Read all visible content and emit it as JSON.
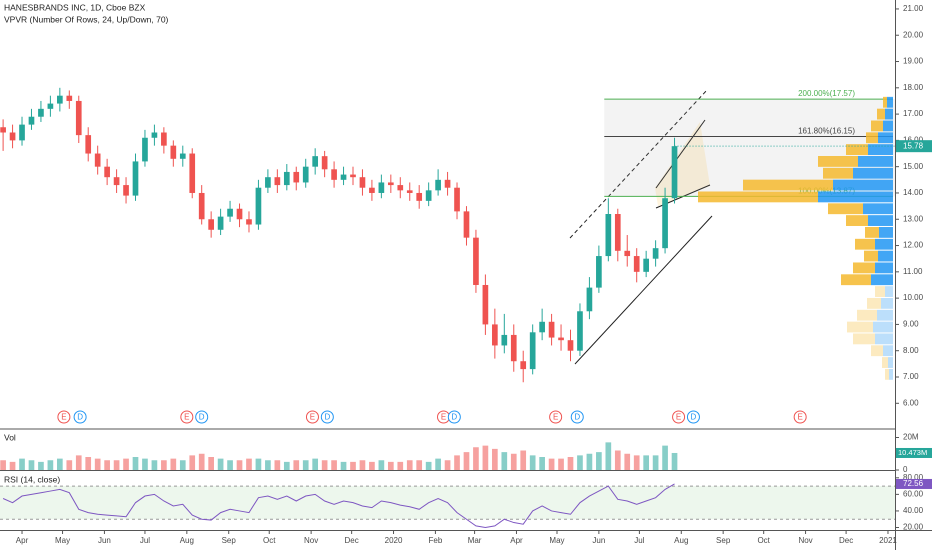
{
  "chart_data": {
    "type": "candlestick",
    "title": "HANESBRANDS INC, 1D, Cboe BZX",
    "subtitle": "VPVR (Number Of Rows, 24, Up/Down, 70)",
    "x": [
      -14,
      -7,
      0,
      7,
      14,
      21,
      28,
      35,
      42,
      49,
      56,
      63,
      70,
      77,
      84,
      91,
      98,
      105,
      112,
      119,
      126,
      133,
      140,
      147,
      154,
      161,
      168,
      175,
      182,
      189,
      196,
      203,
      210,
      217,
      224,
      231,
      238,
      245,
      252,
      259,
      266,
      273,
      280,
      287,
      294,
      301,
      308,
      315,
      322,
      329,
      336,
      343,
      350,
      357,
      364,
      371,
      378,
      385,
      392,
      399,
      406,
      413,
      420,
      427,
      434,
      441,
      448,
      455,
      462,
      469,
      476,
      483
    ],
    "open": [
      16.5,
      16.3,
      16.0,
      16.6,
      16.9,
      17.2,
      17.4,
      17.7,
      17.5,
      16.2,
      15.5,
      15.0,
      14.6,
      14.3,
      13.9,
      15.2,
      16.1,
      16.3,
      15.8,
      15.3,
      15.5,
      14.0,
      13.0,
      12.6,
      13.1,
      13.4,
      13.0,
      12.8,
      14.2,
      14.6,
      14.3,
      14.8,
      14.4,
      15.0,
      15.4,
      14.9,
      14.5,
      14.7,
      14.6,
      14.2,
      14.0,
      14.4,
      14.3,
      14.1,
      14.0,
      13.7,
      14.1,
      14.5,
      14.2,
      13.3,
      12.3,
      10.5,
      9.0,
      8.2,
      8.6,
      7.6,
      7.3,
      8.7,
      9.1,
      8.5,
      8.4,
      8.0,
      9.5,
      10.4,
      11.6,
      13.2,
      11.8,
      11.6,
      11.0,
      11.5,
      11.9,
      13.8
    ],
    "high": [
      16.8,
      16.6,
      16.9,
      17.2,
      17.5,
      17.7,
      18.0,
      17.9,
      17.7,
      16.5,
      15.8,
      15.3,
      14.9,
      14.6,
      15.5,
      16.4,
      16.6,
      16.5,
      16.0,
      15.8,
      15.7,
      14.3,
      13.3,
      13.4,
      13.7,
      13.6,
      13.3,
      14.5,
      14.9,
      14.9,
      15.1,
      15.0,
      15.3,
      15.7,
      15.6,
      15.2,
      15.0,
      15.0,
      14.9,
      14.5,
      14.7,
      14.7,
      14.6,
      14.4,
      14.3,
      14.4,
      14.9,
      14.8,
      14.4,
      13.5,
      12.6,
      10.9,
      9.6,
      9.4,
      9.0,
      8.0,
      9.0,
      9.6,
      9.4,
      9.0,
      8.8,
      9.8,
      10.8,
      12.0,
      13.8,
      13.4,
      12.4,
      11.9,
      11.8,
      12.2,
      14.2,
      16.1
    ],
    "low": [
      15.6,
      15.7,
      15.8,
      16.4,
      16.7,
      16.9,
      17.1,
      17.2,
      15.9,
      15.2,
      14.7,
      14.3,
      14.0,
      13.6,
      13.7,
      15.0,
      15.8,
      15.5,
      15.0,
      15.0,
      13.8,
      12.8,
      12.3,
      12.4,
      12.9,
      12.7,
      12.5,
      12.6,
      14.0,
      14.0,
      14.1,
      14.1,
      14.2,
      14.7,
      14.6,
      14.2,
      14.3,
      14.3,
      13.9,
      13.7,
      13.8,
      14.0,
      13.8,
      13.7,
      13.4,
      13.5,
      13.9,
      13.9,
      13.0,
      12.0,
      10.2,
      8.6,
      7.7,
      7.9,
      7.2,
      6.8,
      7.1,
      8.4,
      8.2,
      8.0,
      7.6,
      7.8,
      9.2,
      10.2,
      11.4,
      11.4,
      11.2,
      10.6,
      10.8,
      11.2,
      11.7,
      13.6
    ],
    "close": [
      16.3,
      16.0,
      16.6,
      16.9,
      17.2,
      17.4,
      17.7,
      17.5,
      16.2,
      15.5,
      15.0,
      14.6,
      14.3,
      13.9,
      15.2,
      16.1,
      16.3,
      15.8,
      15.3,
      15.5,
      14.0,
      13.0,
      12.6,
      13.1,
      13.4,
      13.0,
      12.8,
      14.2,
      14.6,
      14.3,
      14.8,
      14.4,
      15.0,
      15.4,
      14.9,
      14.5,
      14.7,
      14.6,
      14.2,
      14.0,
      14.4,
      14.3,
      14.1,
      14.0,
      13.7,
      14.1,
      14.5,
      14.2,
      13.3,
      12.3,
      10.5,
      9.0,
      8.2,
      8.6,
      7.6,
      7.3,
      8.7,
      9.1,
      8.5,
      8.4,
      8.0,
      9.5,
      10.4,
      11.6,
      13.2,
      11.8,
      11.6,
      11.0,
      11.5,
      11.9,
      13.8,
      15.78
    ],
    "up_color": "#26a69a",
    "down_color": "#ef5350",
    "xlim": [
      -16.3,
      646.2
    ],
    "xticks": [
      {
        "value": 0,
        "label": "Apr"
      },
      {
        "value": 30,
        "label": "May"
      },
      {
        "value": 61,
        "label": "Jun"
      },
      {
        "value": 91,
        "label": "Jul"
      },
      {
        "value": 122,
        "label": "Aug"
      },
      {
        "value": 153,
        "label": "Sep"
      },
      {
        "value": 183,
        "label": "Oct"
      },
      {
        "value": 214,
        "label": "Nov"
      },
      {
        "value": 244,
        "label": "Dec"
      },
      {
        "value": 275,
        "label": "2020"
      },
      {
        "value": 306,
        "label": "Feb"
      },
      {
        "value": 335,
        "label": "Mar"
      },
      {
        "value": 366,
        "label": "Apr"
      },
      {
        "value": 396,
        "label": "May"
      },
      {
        "value": 427,
        "label": "Jun"
      },
      {
        "value": 457,
        "label": "Jul"
      },
      {
        "value": 488,
        "label": "Aug"
      },
      {
        "value": 519,
        "label": "Sep"
      },
      {
        "value": 549,
        "label": "Oct"
      },
      {
        "value": 580,
        "label": "Nov"
      },
      {
        "value": 610,
        "label": "Dec"
      },
      {
        "value": 641,
        "label": "2021"
      }
    ],
    "ylim": [
      5.06,
      21.34
    ],
    "yticks": [
      {
        "value": 6,
        "label": "6.00"
      },
      {
        "value": 7,
        "label": "7.00"
      },
      {
        "value": 8,
        "label": "8.00"
      },
      {
        "value": 9,
        "label": "9.00"
      },
      {
        "value": 10,
        "label": "10.00"
      },
      {
        "value": 11,
        "label": "11.00"
      },
      {
        "value": 12,
        "label": "12.00"
      },
      {
        "value": 13,
        "label": "13.00"
      },
      {
        "value": 14,
        "label": "14.00"
      },
      {
        "value": 15,
        "label": "15.00"
      },
      {
        "value": 16,
        "label": "16.00"
      },
      {
        "value": 17,
        "label": "17.00"
      },
      {
        "value": 18,
        "label": "18.00"
      },
      {
        "value": 19,
        "label": "19.00"
      },
      {
        "value": 20,
        "label": "20.00"
      },
      {
        "value": 21,
        "label": "21.00"
      }
    ],
    "fib": {
      "x_start": 431,
      "levels": [
        {
          "value": 17.57,
          "label": "200.00%(17.57)",
          "color": "#4caf50"
        },
        {
          "value": 16.15,
          "label": "161.80%(16.15)",
          "color": "#444444"
        },
        {
          "value": 13.87,
          "label": "100.00%(13.87)",
          "color": "#4caf50"
        }
      ]
    },
    "events": [
      {
        "label": "E",
        "x": 31
      },
      {
        "label": "D",
        "x": 43
      },
      {
        "label": "E",
        "x": 122
      },
      {
        "label": "D",
        "x": 133
      },
      {
        "label": "E",
        "x": 215
      },
      {
        "label": "D",
        "x": 226
      },
      {
        "label": "E",
        "x": 312
      },
      {
        "label": "D",
        "x": 320
      },
      {
        "label": "E",
        "x": 395
      },
      {
        "label": "D",
        "x": 411
      },
      {
        "label": "E",
        "x": 486
      },
      {
        "label": "D",
        "x": 497
      },
      {
        "label": "E",
        "x": 576
      }
    ],
    "event_colors": {
      "E": "#ef5350",
      "D": "#2196f3"
    },
    "vpvr": {
      "prices": [
        7.1,
        7.55,
        8.0,
        8.45,
        8.9,
        9.35,
        9.8,
        10.25,
        10.7,
        11.15,
        11.6,
        12.05,
        12.5,
        12.95,
        13.4,
        13.85,
        14.3,
        14.75,
        15.2,
        15.65,
        16.1,
        16.55,
        17.0,
        17.45
      ],
      "up": [
        4,
        5,
        10,
        18,
        20,
        16,
        12,
        8,
        22,
        18,
        15,
        18,
        14,
        25,
        30,
        75,
        60,
        40,
        35,
        25,
        15,
        10,
        8,
        6
      ],
      "down": [
        4,
        6,
        12,
        22,
        26,
        20,
        14,
        10,
        30,
        22,
        14,
        20,
        14,
        22,
        35,
        120,
        90,
        30,
        40,
        22,
        12,
        12,
        8,
        4
      ],
      "up_color": "#2196f3",
      "down_color": "#f5b82e",
      "value_area": [
        10.4,
        17.7
      ]
    },
    "volume": {
      "title": "Vol",
      "values": [
        6,
        5,
        7,
        6,
        5,
        6,
        7,
        6,
        9,
        8,
        7,
        6,
        6,
        7,
        8,
        7,
        6,
        6,
        7,
        6,
        9,
        10,
        8,
        7,
        6,
        6,
        7,
        7,
        6,
        6,
        5,
        6,
        6,
        7,
        6,
        6,
        5,
        5,
        6,
        5,
        6,
        5,
        5,
        6,
        6,
        5,
        7,
        6,
        9,
        11,
        14,
        15,
        13,
        11,
        10,
        12,
        9,
        8,
        7,
        7,
        8,
        9,
        10,
        11,
        17,
        12,
        10,
        9,
        9,
        9,
        15,
        10.473
      ],
      "last_label": "10.473M",
      "ylim": [
        0,
        24
      ],
      "yticks": [
        {
          "value": 0,
          "label": "0"
        },
        {
          "value": 10,
          "label": "10M"
        },
        {
          "value": 20,
          "label": "20M"
        }
      ]
    },
    "rsi": {
      "title": "RSI (14, close)",
      "values": [
        55,
        50,
        58,
        60,
        62,
        64,
        66,
        62,
        42,
        38,
        36,
        35,
        34,
        33,
        50,
        58,
        60,
        52,
        46,
        48,
        35,
        30,
        29,
        38,
        42,
        40,
        38,
        56,
        58,
        54,
        58,
        52,
        58,
        60,
        52,
        48,
        52,
        50,
        46,
        44,
        52,
        50,
        47,
        45,
        42,
        50,
        55,
        50,
        38,
        30,
        22,
        20,
        22,
        30,
        26,
        24,
        40,
        46,
        40,
        38,
        36,
        50,
        58,
        64,
        70,
        54,
        52,
        48,
        52,
        56,
        66,
        72.56
      ],
      "ylim": [
        17,
        87
      ],
      "yticks": [
        {
          "value": 20,
          "label": "20.00"
        },
        {
          "value": 40,
          "label": "40.00"
        },
        {
          "value": 60,
          "label": "60.00"
        },
        {
          "value": 80,
          "label": "80.00"
        }
      ],
      "band": [
        30,
        70
      ],
      "color": "#7e57c2"
    }
  }
}
